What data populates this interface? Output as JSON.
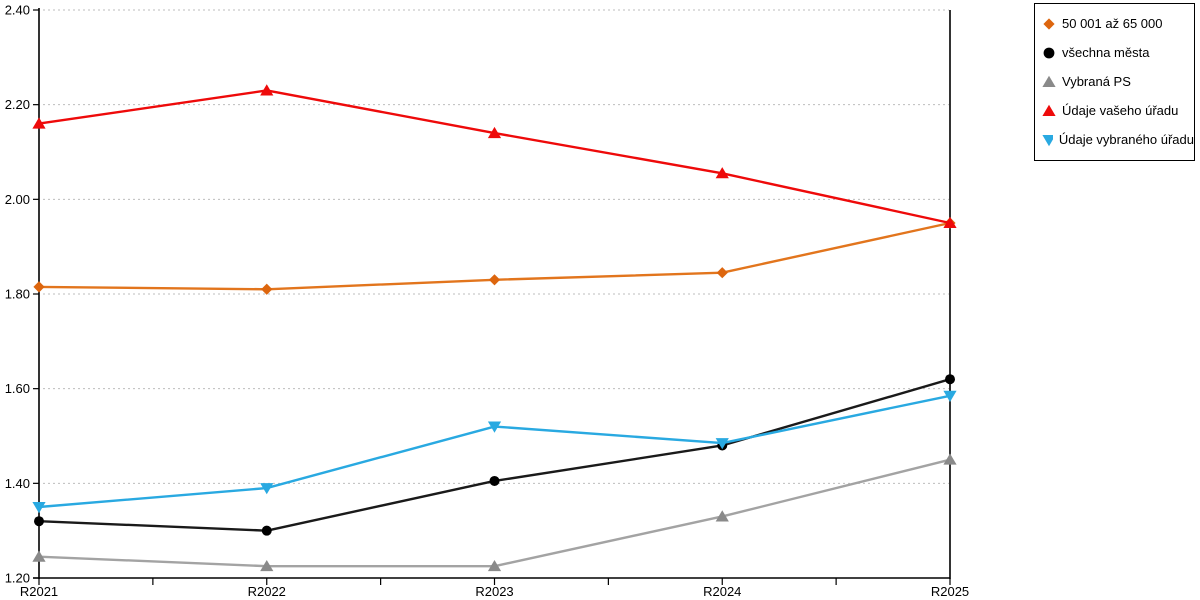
{
  "chart_data": {
    "type": "line",
    "title": "",
    "xlabel": "",
    "ylabel": "",
    "categories": [
      "R2021",
      "R2022",
      "R2023",
      "R2024",
      "R2025"
    ],
    "series": [
      {
        "name": "50 001 až 65 000",
        "marker": "diamond",
        "color": "#E2751D",
        "marker_color": "#DD660E",
        "values": [
          1.815,
          1.81,
          1.83,
          1.845,
          1.95
        ]
      },
      {
        "name": "všechna města",
        "marker": "circle",
        "color": "#1A1A1A",
        "marker_color": "#000000",
        "values": [
          1.32,
          1.3,
          1.405,
          1.48,
          1.62
        ]
      },
      {
        "name": "Vybraná PS",
        "marker": "triangle-up",
        "color": "#A3A3A3",
        "marker_color": "#8A8A8A",
        "values": [
          1.245,
          1.225,
          1.225,
          1.33,
          1.45
        ]
      },
      {
        "name": "Údaje vašeho úřadu",
        "marker": "triangle-up",
        "color": "#EE0A0A",
        "marker_color": "#EE0A0A",
        "values": [
          2.16,
          2.23,
          2.14,
          2.055,
          1.95
        ]
      },
      {
        "name": "Údaje vybraného úřadu",
        "marker": "triangle-down",
        "color": "#29A9E1",
        "marker_color": "#29A9E1",
        "values": [
          1.35,
          1.39,
          1.52,
          1.485,
          1.585
        ]
      }
    ],
    "ylim": [
      1.2,
      2.4
    ],
    "ytick_labels": [
      "1.20",
      "1.40",
      "1.60",
      "1.80",
      "2.00",
      "2.20",
      "2.40"
    ],
    "grid": "horizontal-dotted",
    "grid_color": "#BDBDBD",
    "axis_color": "#000000",
    "legend_position": "outside-top-right"
  }
}
